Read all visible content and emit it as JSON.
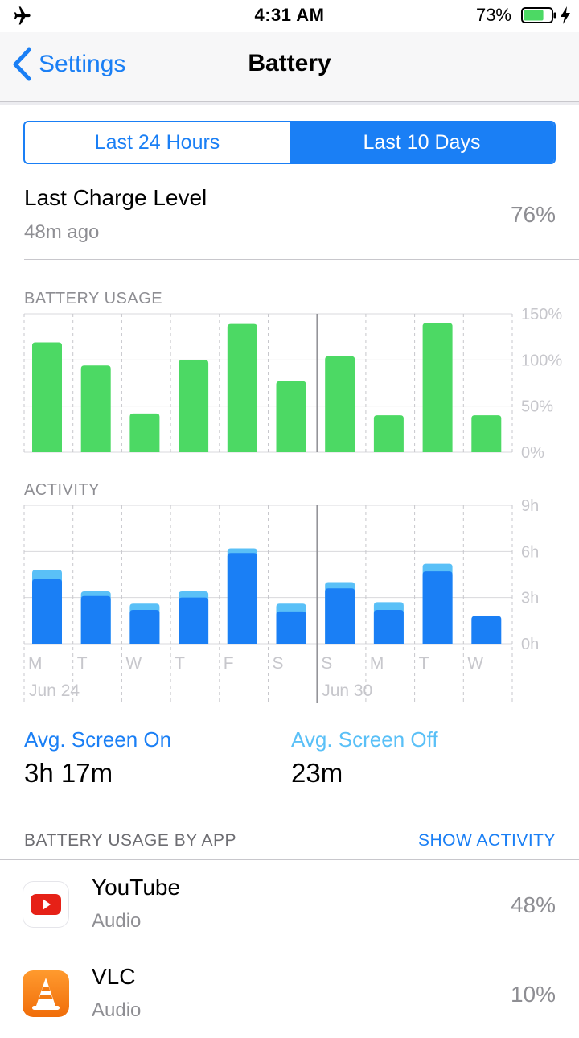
{
  "status_bar": {
    "time": "4:31 AM",
    "battery_percent": "73%",
    "battery_level": 0.73,
    "icons": [
      "airplane-icon",
      "battery-icon",
      "charging-bolt-icon"
    ]
  },
  "nav": {
    "back_label": "Settings",
    "title": "Battery"
  },
  "segment": {
    "options": [
      "Last 24 Hours",
      "Last 10 Days"
    ],
    "selected": "Last 10 Days"
  },
  "last_charge": {
    "title": "Last Charge Level",
    "subtitle": "48m ago",
    "value": "76%"
  },
  "battery_chart": {
    "label": "BATTERY USAGE",
    "y_ticks": [
      "150%",
      "100%",
      "50%",
      "0%"
    ],
    "ymax": 150,
    "values": [
      119,
      94,
      42,
      100,
      139,
      77,
      104,
      40,
      140,
      40
    ],
    "color": "#4cd964"
  },
  "activity_chart": {
    "label": "ACTIVITY",
    "y_ticks": [
      "9h",
      "6h",
      "3h",
      "0h"
    ],
    "ymax": 9,
    "screen_on": [
      4.2,
      3.1,
      2.2,
      3.0,
      5.9,
      2.1,
      3.6,
      2.2,
      4.7,
      1.8
    ],
    "screen_off": [
      0.6,
      0.3,
      0.4,
      0.4,
      0.3,
      0.5,
      0.4,
      0.5,
      0.5,
      0.0
    ],
    "on_color": "#1a7ff5",
    "off_color": "#5ac0f7"
  },
  "days": [
    "M",
    "T",
    "W",
    "T",
    "F",
    "S",
    "S",
    "M",
    "T",
    "W"
  ],
  "date_labels": [
    "Jun 24",
    "Jun 30"
  ],
  "averages": {
    "screen_on_label": "Avg. Screen On",
    "screen_on_value": "3h 17m",
    "screen_off_label": "Avg. Screen Off",
    "screen_off_value": "23m"
  },
  "usage_by_app": {
    "header": "BATTERY USAGE BY APP",
    "action": "SHOW ACTIVITY",
    "apps": [
      {
        "name": "YouTube",
        "category": "Audio",
        "percent": "48%",
        "icon": "youtube-icon"
      },
      {
        "name": "VLC",
        "category": "Audio",
        "percent": "10%",
        "icon": "vlc-icon"
      }
    ]
  }
}
